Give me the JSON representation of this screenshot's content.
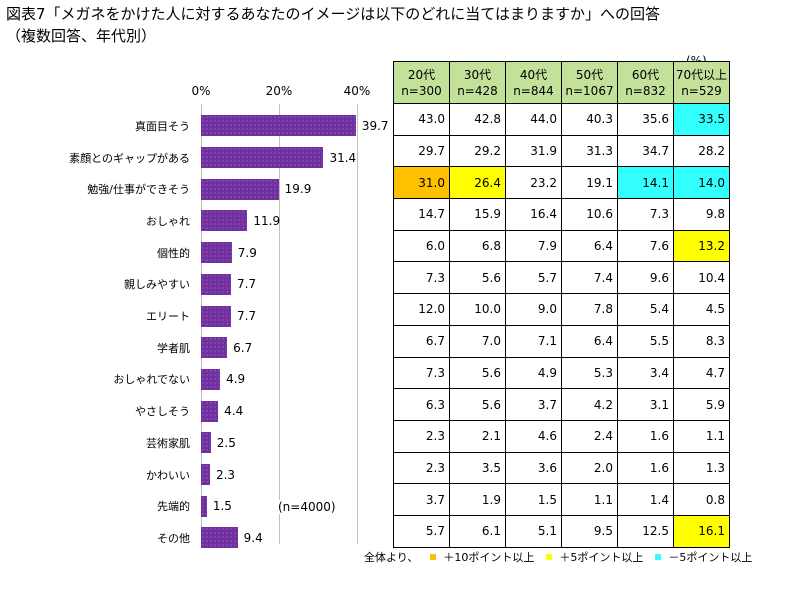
{
  "title": "図表7「メガネをかけた人に対するあなたのイメージは以下のどれに当てはまりますか」への回答",
  "subtitle": "（複数回答、年代別）",
  "unit": "(%)",
  "n_label": "(n=4000)",
  "colors": {
    "bar": "#7030a0",
    "header": "#c4e19a",
    "plus10": "#ffc000",
    "plus5": "#ffff00",
    "minus5": "#33ffff"
  },
  "chart_data": {
    "type": "bar",
    "orientation": "horizontal",
    "title": "全体",
    "xlim": [
      0,
      40
    ],
    "ticks": [
      "0%",
      "20%",
      "40%"
    ],
    "tick_values": [
      0,
      20,
      40
    ],
    "categories": [
      "真面目そう",
      "素顔とのギャップがある",
      "勉強/仕事ができそう",
      "おしゃれ",
      "個性的",
      "親しみやすい",
      "エリート",
      "学者肌",
      "おしゃれでない",
      "やさしそう",
      "芸術家肌",
      "かわいい",
      "先端的",
      "その他"
    ],
    "values": [
      39.7,
      31.4,
      19.9,
      11.9,
      7.9,
      7.7,
      7.7,
      6.7,
      4.9,
      4.4,
      2.5,
      2.3,
      1.5,
      9.4
    ],
    "table": {
      "columns": [
        {
          "label": "20代",
          "n": "n=300"
        },
        {
          "label": "30代",
          "n": "n=428"
        },
        {
          "label": "40代",
          "n": "n=844"
        },
        {
          "label": "50代",
          "n": "n=1067"
        },
        {
          "label": "60代",
          "n": "n=832"
        },
        {
          "label": "70代以上",
          "n": "n=529"
        }
      ],
      "rows": [
        [
          "43.0",
          "42.8",
          "44.0",
          "40.3",
          "35.6",
          "33.5"
        ],
        [
          "29.7",
          "29.2",
          "31.9",
          "31.3",
          "34.7",
          "28.2"
        ],
        [
          "31.0",
          "26.4",
          "23.2",
          "19.1",
          "14.1",
          "14.0"
        ],
        [
          "14.7",
          "15.9",
          "16.4",
          "10.6",
          "7.3",
          "9.8"
        ],
        [
          "6.0",
          "6.8",
          "7.9",
          "6.4",
          "7.6",
          "13.2"
        ],
        [
          "7.3",
          "5.6",
          "5.7",
          "7.4",
          "9.6",
          "10.4"
        ],
        [
          "12.0",
          "10.0",
          "9.0",
          "7.8",
          "5.4",
          "4.5"
        ],
        [
          "6.7",
          "7.0",
          "7.1",
          "6.4",
          "5.5",
          "8.3"
        ],
        [
          "7.3",
          "5.6",
          "4.9",
          "5.3",
          "3.4",
          "4.7"
        ],
        [
          "6.3",
          "5.6",
          "3.7",
          "4.2",
          "3.1",
          "5.9"
        ],
        [
          "2.3",
          "2.1",
          "4.6",
          "2.4",
          "1.6",
          "1.1"
        ],
        [
          "2.3",
          "3.5",
          "3.6",
          "2.0",
          "1.6",
          "1.3"
        ],
        [
          "3.7",
          "1.9",
          "1.5",
          "1.1",
          "1.4",
          "0.8"
        ],
        [
          "5.7",
          "6.1",
          "5.1",
          "9.5",
          "12.5",
          "16.1"
        ]
      ],
      "highlights": [
        [
          "",
          "",
          "",
          "",
          "",
          "minus5"
        ],
        [
          "",
          "",
          "",
          "",
          "",
          ""
        ],
        [
          "plus10",
          "plus5",
          "",
          "",
          "minus5",
          "minus5"
        ],
        [
          "",
          "",
          "",
          "",
          "",
          ""
        ],
        [
          "",
          "",
          "",
          "",
          "",
          "plus5"
        ],
        [
          "",
          "",
          "",
          "",
          "",
          ""
        ],
        [
          "",
          "",
          "",
          "",
          "",
          ""
        ],
        [
          "",
          "",
          "",
          "",
          "",
          ""
        ],
        [
          "",
          "",
          "",
          "",
          "",
          ""
        ],
        [
          "",
          "",
          "",
          "",
          "",
          ""
        ],
        [
          "",
          "",
          "",
          "",
          "",
          ""
        ],
        [
          "",
          "",
          "",
          "",
          "",
          ""
        ],
        [
          "",
          "",
          "",
          "",
          "",
          ""
        ],
        [
          "",
          "",
          "",
          "",
          "",
          "plus5"
        ]
      ]
    }
  },
  "legend": {
    "prefix": "全体より、",
    "items": [
      {
        "key": "plus10",
        "label": "＋10ポイント以上"
      },
      {
        "key": "plus5",
        "label": "＋5ポイント以上"
      },
      {
        "key": "minus5",
        "label": "－5ポイント以上"
      }
    ]
  }
}
